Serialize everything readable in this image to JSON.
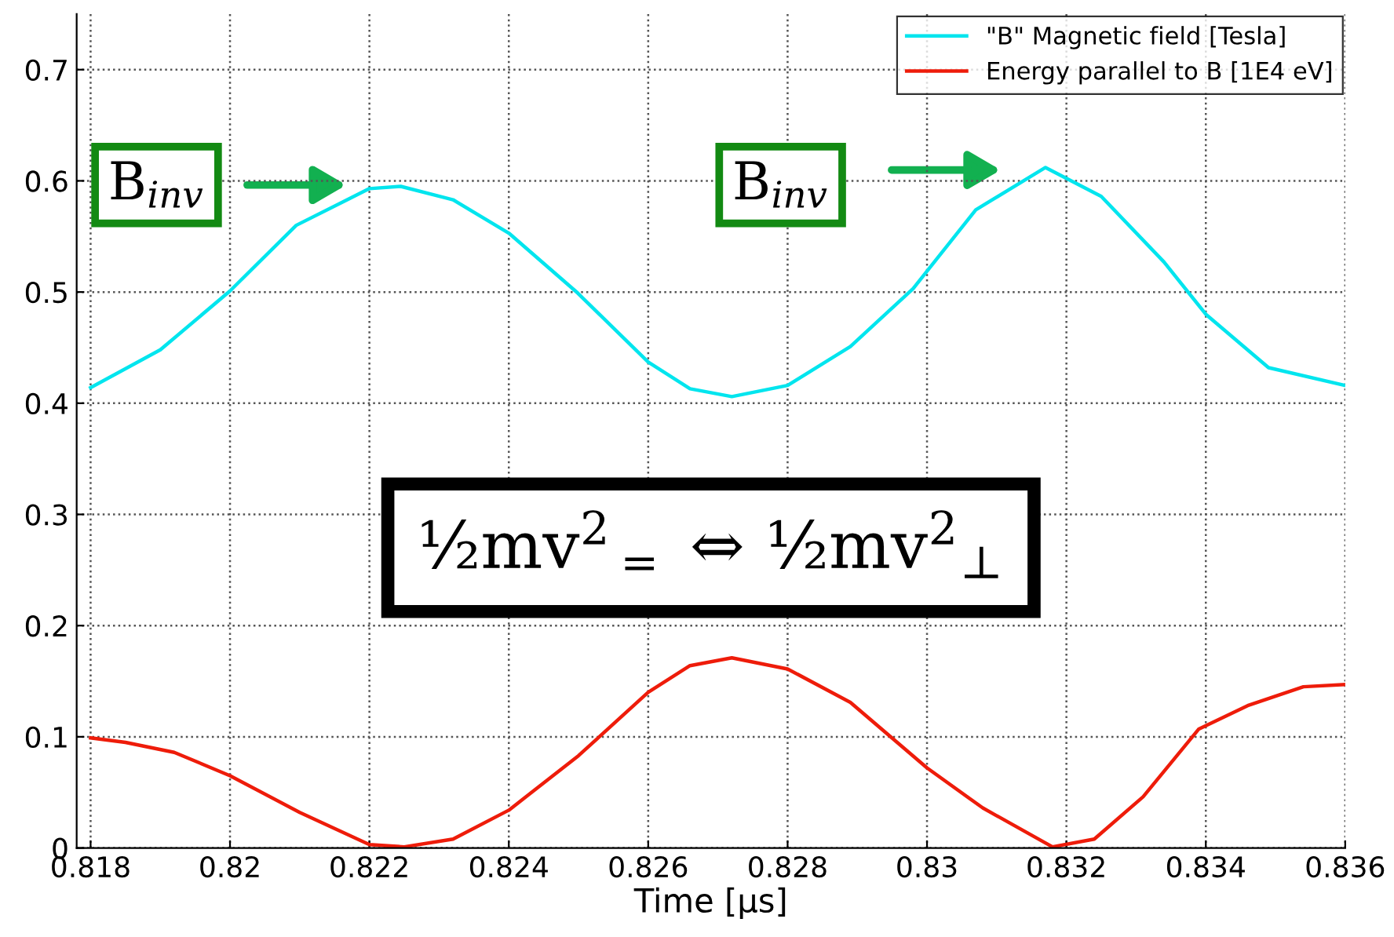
{
  "chart_data": {
    "type": "line",
    "xlabel": "Time [μs]",
    "series": [
      {
        "name": "\"B\" Magnetic field [Tesla]",
        "color": "#00e5ee",
        "x": [
          0.818,
          0.819,
          0.82,
          0.82095,
          0.822,
          0.82245,
          0.8232,
          0.824,
          0.82499,
          0.826,
          0.8266,
          0.8272,
          0.828,
          0.8289,
          0.8298,
          0.8307,
          0.8317,
          0.8325,
          0.8334,
          0.834,
          0.8349,
          0.836
        ],
        "values": [
          0.414,
          0.448,
          0.501,
          0.56,
          0.593,
          0.595,
          0.583,
          0.553,
          0.499,
          0.437,
          0.413,
          0.406,
          0.416,
          0.451,
          0.503,
          0.574,
          0.612,
          0.586,
          0.527,
          0.48,
          0.432,
          0.416
        ]
      },
      {
        "name": "Energy parallel to B [1E4 eV]",
        "color": "#ee1c0a",
        "x": [
          0.818,
          0.8185,
          0.8192,
          0.82,
          0.821,
          0.822,
          0.8225,
          0.8232,
          0.824,
          0.825,
          0.826,
          0.8266,
          0.8272,
          0.828,
          0.8289,
          0.83,
          0.8308,
          0.8318,
          0.8324,
          0.8331,
          0.8339,
          0.8346,
          0.8354,
          0.836
        ],
        "values": [
          0.099,
          0.095,
          0.086,
          0.065,
          0.032,
          0.003,
          0.001,
          0.008,
          0.034,
          0.083,
          0.14,
          0.164,
          0.171,
          0.161,
          0.131,
          0.072,
          0.036,
          0.001,
          0.008,
          0.046,
          0.107,
          0.128,
          0.145,
          0.147
        ]
      }
    ],
    "xlim": [
      0.8178,
      0.836
    ],
    "ylim": [
      0,
      0.75
    ],
    "xticks": [
      0.818,
      0.82,
      0.822,
      0.824,
      0.826,
      0.828,
      0.83,
      0.832,
      0.834,
      0.836
    ],
    "yticks": [
      0,
      0.1,
      0.2,
      0.3,
      0.4,
      0.5,
      0.6,
      0.7
    ],
    "grid": true,
    "legend": "top right",
    "line_style": "solid",
    "marker": "none",
    "annotations": [
      "B$_{inv}$",
      "B$_{inv}$",
      "½mv$^{2}$$_{=}$ ⇔ ½mv$^{2}$$_{⊥}$"
    ]
  }
}
